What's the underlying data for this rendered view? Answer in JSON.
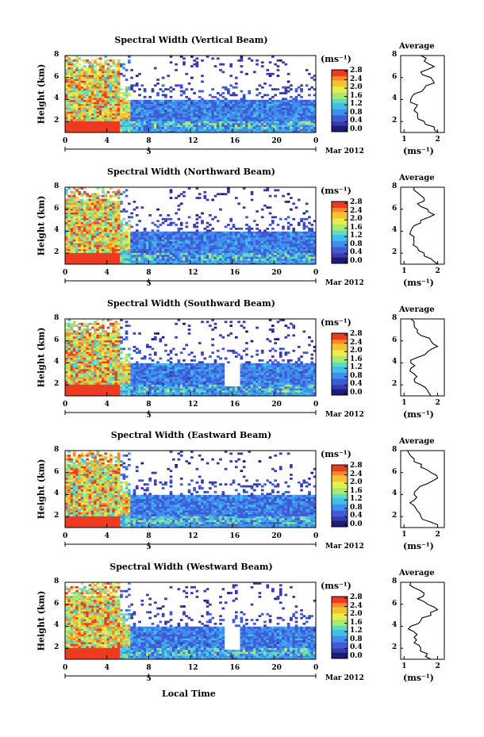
{
  "x_axis_label": "Local Time",
  "date_label": "Mar 2012",
  "day_label": "5",
  "time_ticks": [
    "0",
    "4",
    "8",
    "12",
    "16",
    "20",
    "0"
  ],
  "height_ticks": [
    "2",
    "4",
    "6",
    "8"
  ],
  "y_axis_label": "Height (km)",
  "colorbar_unit": "(ms⁻¹)",
  "colorbar_ticks": [
    "0.0",
    "0.4",
    "0.8",
    "1.2",
    "1.6",
    "2.0",
    "2.4",
    "2.8"
  ],
  "average_title": "Average",
  "average_xlabel": "(ms⁻¹)",
  "colors": {
    "scale": [
      "#1c1c7a",
      "#3a3aa8",
      "#3f5bd6",
      "#3f8ef0",
      "#41bfe8",
      "#5fdcc0",
      "#a6e87a",
      "#e8ec4c",
      "#f6c233",
      "#f58a2a",
      "#ee3a22"
    ]
  },
  "chart_data": [
    {
      "type": "heatmap",
      "title": "Spectral Width (Vertical Beam)",
      "xlim": [
        0,
        24
      ],
      "ylim": [
        1,
        8
      ],
      "average": {
        "xticks": [
          "1",
          "2"
        ],
        "xlim": [
          0.9,
          2.2
        ],
        "profile": [
          [
            1,
            2.0
          ],
          [
            1.5,
            1.9
          ],
          [
            2.0,
            1.6
          ],
          [
            2.5,
            1.4
          ],
          [
            3.0,
            1.3
          ],
          [
            3.5,
            1.4
          ],
          [
            4.0,
            1.2
          ],
          [
            4.5,
            1.3
          ],
          [
            5.0,
            1.6
          ],
          [
            5.5,
            1.9
          ],
          [
            6.0,
            1.8
          ],
          [
            6.5,
            1.5
          ],
          [
            7.0,
            1.9
          ],
          [
            7.5,
            1.6
          ],
          [
            8.0,
            1.5
          ]
        ]
      }
    },
    {
      "type": "heatmap",
      "title": "Spectral Width (Northward Beam)",
      "xlim": [
        0,
        24
      ],
      "ylim": [
        1,
        8
      ],
      "average": {
        "xticks": [
          "1",
          "2"
        ],
        "xlim": [
          0.9,
          2.2
        ],
        "profile": [
          [
            1,
            2.0
          ],
          [
            1.5,
            1.8
          ],
          [
            2.0,
            1.6
          ],
          [
            2.5,
            1.4
          ],
          [
            3.0,
            1.3
          ],
          [
            3.5,
            1.3
          ],
          [
            4.0,
            1.2
          ],
          [
            4.5,
            1.3
          ],
          [
            5.0,
            1.5
          ],
          [
            5.5,
            1.9
          ],
          [
            6.0,
            1.7
          ],
          [
            6.5,
            1.4
          ],
          [
            7.0,
            1.6
          ],
          [
            7.5,
            1.4
          ],
          [
            8.0,
            1.3
          ]
        ]
      }
    },
    {
      "type": "heatmap",
      "title": "Spectral Width (Southward Beam)",
      "xlim": [
        0,
        24
      ],
      "ylim": [
        1,
        8
      ],
      "average": {
        "xticks": [
          "1",
          "2"
        ],
        "xlim": [
          0.9,
          2.2
        ],
        "profile": [
          [
            1,
            1.8
          ],
          [
            1.5,
            1.7
          ],
          [
            2.0,
            1.5
          ],
          [
            2.5,
            1.3
          ],
          [
            3.0,
            1.3
          ],
          [
            3.5,
            1.2
          ],
          [
            4.0,
            1.2
          ],
          [
            4.5,
            1.4
          ],
          [
            5.0,
            1.7
          ],
          [
            5.5,
            2.0
          ],
          [
            6.0,
            1.8
          ],
          [
            6.5,
            1.5
          ],
          [
            7.0,
            1.4
          ],
          [
            7.5,
            1.3
          ],
          [
            8.0,
            1.2
          ]
        ]
      }
    },
    {
      "type": "heatmap",
      "title": "Spectral Width (Eastward Beam)",
      "xlim": [
        0,
        24
      ],
      "ylim": [
        1,
        8
      ],
      "average": {
        "xticks": [
          "1",
          "2"
        ],
        "xlim": [
          0.9,
          2.2
        ],
        "profile": [
          [
            1,
            2.0
          ],
          [
            1.5,
            1.8
          ],
          [
            2.0,
            1.5
          ],
          [
            2.5,
            1.4
          ],
          [
            3.0,
            1.3
          ],
          [
            3.5,
            1.3
          ],
          [
            4.0,
            1.3
          ],
          [
            4.5,
            1.4
          ],
          [
            5.0,
            1.7
          ],
          [
            5.5,
            2.0
          ],
          [
            6.0,
            1.8
          ],
          [
            6.5,
            1.5
          ],
          [
            7.0,
            1.3
          ],
          [
            7.5,
            1.2
          ],
          [
            8.0,
            1.1
          ]
        ]
      }
    },
    {
      "type": "heatmap",
      "title": "Spectral Width (Westward Beam)",
      "xlim": [
        0,
        24
      ],
      "ylim": [
        1,
        8
      ],
      "average": {
        "xticks": [
          "1",
          "2"
        ],
        "xlim": [
          0.9,
          2.2
        ],
        "profile": [
          [
            1,
            1.8
          ],
          [
            1.5,
            1.7
          ],
          [
            2.0,
            1.5
          ],
          [
            2.5,
            1.3
          ],
          [
            3.0,
            1.3
          ],
          [
            3.5,
            1.3
          ],
          [
            4.0,
            1.2
          ],
          [
            4.5,
            1.5
          ],
          [
            5.0,
            1.8
          ],
          [
            5.5,
            2.0
          ],
          [
            6.0,
            1.7
          ],
          [
            6.5,
            1.4
          ],
          [
            7.0,
            1.6
          ],
          [
            7.5,
            1.3
          ],
          [
            8.0,
            1.2
          ]
        ]
      }
    }
  ]
}
